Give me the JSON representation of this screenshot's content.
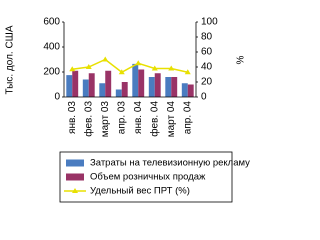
{
  "chart_data": {
    "type": "bar",
    "categories": [
      "янв. 03",
      "фев. 03",
      "март 03",
      "апр. 03",
      "янв. 04",
      "фев. 04",
      "март 04",
      "апр. 04"
    ],
    "y_label": "Тыс. дол. США",
    "y2_label": "%",
    "ylim": [
      0,
      600
    ],
    "yticks": [
      0,
      200,
      400,
      600
    ],
    "y2lim": [
      0,
      100
    ],
    "y2ticks": [
      0,
      20,
      40,
      60,
      80,
      100
    ],
    "series": [
      {
        "name": "Затраты на телевизионную рекламу",
        "color": "#4a7cc0",
        "type": "bar",
        "values": [
          175,
          140,
          110,
          60,
          265,
          160,
          160,
          110
        ]
      },
      {
        "name": "Объем розничных продаж",
        "color": "#993366",
        "type": "bar",
        "values": [
          210,
          190,
          210,
          120,
          220,
          190,
          160,
          100
        ]
      },
      {
        "name": "Удельный вес ПРТ (%)",
        "color": "#e8e000",
        "type": "line",
        "axis": "y2",
        "values": [
          37,
          40,
          50,
          33,
          45,
          38,
          38,
          33
        ]
      }
    ]
  }
}
